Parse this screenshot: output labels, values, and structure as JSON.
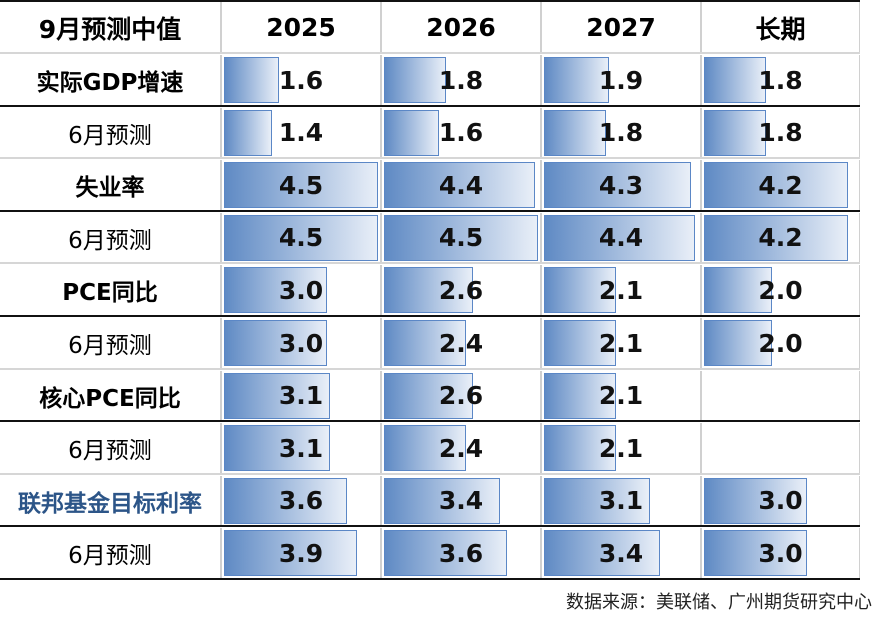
{
  "chart_data": {
    "type": "table",
    "header": [
      "9月预测中值",
      "2025",
      "2026",
      "2027",
      "长期"
    ],
    "rows": [
      {
        "label": "实际GDP增速",
        "bold": true,
        "values": [
          1.6,
          1.8,
          1.9,
          1.8
        ]
      },
      {
        "label": "6月预测",
        "bold": false,
        "values": [
          1.4,
          1.6,
          1.8,
          1.8
        ]
      },
      {
        "label": "失业率",
        "bold": true,
        "values": [
          4.5,
          4.4,
          4.3,
          4.2
        ]
      },
      {
        "label": "6月预测",
        "bold": false,
        "values": [
          4.5,
          4.5,
          4.4,
          4.2
        ]
      },
      {
        "label": "PCE同比",
        "bold": true,
        "values": [
          3.0,
          2.6,
          2.1,
          2.0
        ]
      },
      {
        "label": "6月预测",
        "bold": false,
        "values": [
          3.0,
          2.4,
          2.1,
          2.0
        ]
      },
      {
        "label": "核心PCE同比",
        "bold": true,
        "values": [
          3.1,
          2.6,
          2.1,
          null
        ]
      },
      {
        "label": "6月预测",
        "bold": false,
        "values": [
          3.1,
          2.4,
          2.1,
          null
        ]
      },
      {
        "label": "联邦基金目标利率",
        "bold": true,
        "highlight": true,
        "values": [
          3.6,
          3.4,
          3.1,
          3.0
        ]
      },
      {
        "label": "6月预测",
        "bold": false,
        "values": [
          3.9,
          3.6,
          3.4,
          3.0
        ]
      }
    ],
    "bar_max": 4.5,
    "colors": {
      "bar_start": "#5f8ac4",
      "bar_end": "#e9eff8",
      "bar_border": "#5b87c6",
      "highlight_label": "#2c5588"
    }
  },
  "source": "数据来源：美联储、广州期货研究中心"
}
